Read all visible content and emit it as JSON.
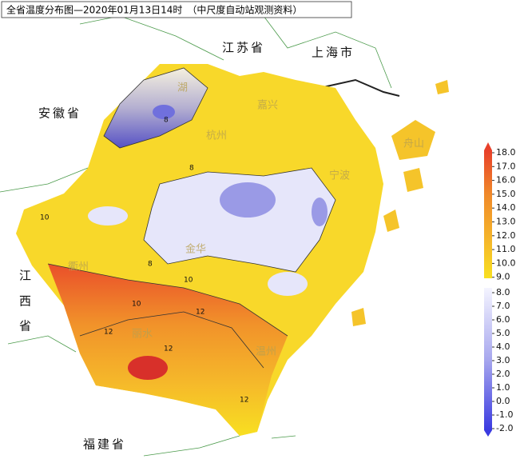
{
  "title": "全省温度分布图—2020年01月13日14时　（中尺度自动站观测资料）",
  "neighbors": {
    "jiangsu": "江苏省",
    "shanghai": "上海市",
    "anhui": "安徽省",
    "jiangxi": [
      "江",
      "西",
      "省"
    ],
    "fujian": "福建省"
  },
  "cities": [
    "湖",
    "嘉兴",
    "杭州",
    "宁波",
    "舟山",
    "金华",
    "衢州",
    "丽水",
    "温州"
  ],
  "contour_labels": [
    "8",
    "8",
    "8",
    "10",
    "10",
    "10",
    "12",
    "12",
    "12",
    "12"
  ],
  "legend": {
    "ticks": [
      {
        "value": 18,
        "label": "18.0"
      },
      {
        "value": 17,
        "label": "17.0"
      },
      {
        "value": 16,
        "label": "16.0"
      },
      {
        "value": 15,
        "label": "15.0"
      },
      {
        "value": 14,
        "label": "14.0"
      },
      {
        "value": 13,
        "label": "13.0"
      },
      {
        "value": 12,
        "label": "12.0"
      },
      {
        "value": 11,
        "label": "11.0"
      },
      {
        "value": 10,
        "label": "10.0"
      },
      {
        "value": 9,
        "label": "9.0"
      },
      {
        "value": 8,
        "label": "8.0"
      },
      {
        "value": 7,
        "label": "7.0"
      },
      {
        "value": 6,
        "label": "6.0"
      },
      {
        "value": 5,
        "label": "5.0"
      },
      {
        "value": 4,
        "label": "4.0"
      },
      {
        "value": 3,
        "label": "3.0"
      },
      {
        "value": 2,
        "label": "2.0"
      },
      {
        "value": 1,
        "label": "1.0"
      },
      {
        "value": 0,
        "label": "0.0"
      },
      {
        "value": -1,
        "label": "-1.0"
      },
      {
        "value": -2,
        "label": "-2.0"
      }
    ]
  }
}
